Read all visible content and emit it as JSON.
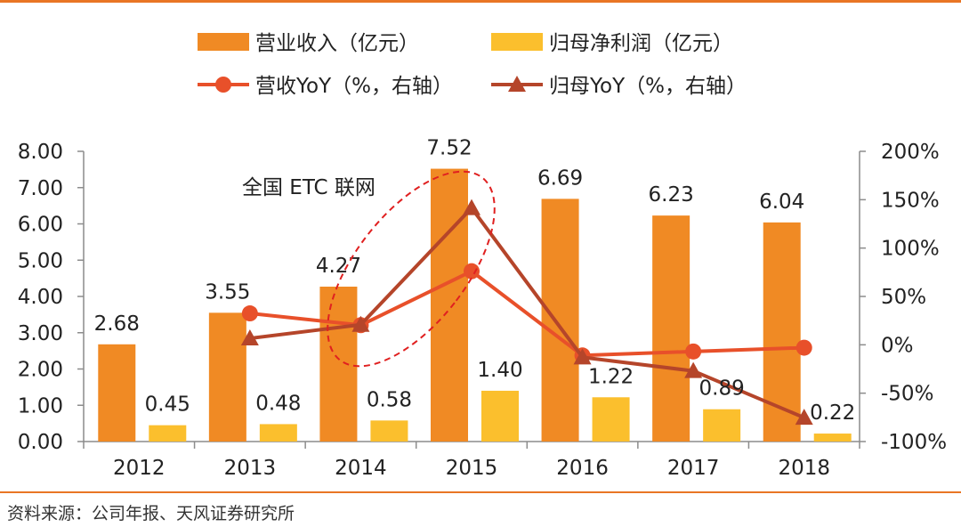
{
  "chart_data": {
    "type": "bar+line",
    "categories": [
      "2012",
      "2013",
      "2014",
      "2015",
      "2016",
      "2017",
      "2018"
    ],
    "bar_series": [
      {
        "name": "营业收入（亿元）",
        "values": [
          2.68,
          3.55,
          4.27,
          7.52,
          6.69,
          6.23,
          6.04
        ],
        "labels": [
          "2.68",
          "3.55",
          "4.27",
          "7.52",
          "6.69",
          "6.23",
          "6.04"
        ],
        "color": "#f08a24"
      },
      {
        "name": "归母净利润（亿元）",
        "values": [
          0.45,
          0.48,
          0.58,
          1.4,
          1.22,
          0.89,
          0.22
        ],
        "labels": [
          "0.45",
          "0.48",
          "0.58",
          "1.40",
          "1.22",
          "0.89",
          "0.22"
        ],
        "color": "#fbbf2d"
      }
    ],
    "line_series": [
      {
        "name": "营收YoY（%，右轴）",
        "marker": "circle",
        "color": "#e8502a",
        "values": [
          null,
          32.5,
          20.3,
          76.1,
          -11.0,
          -6.9,
          -3.0
        ]
      },
      {
        "name": "归母YoY（%，右轴）",
        "marker": "triangle",
        "color": "#b5452a",
        "values": [
          null,
          6.7,
          20.8,
          141.4,
          -12.9,
          -27.0,
          -75.3
        ]
      }
    ],
    "y_left": {
      "min": 0,
      "max": 8,
      "step": 1,
      "ticks": [
        "0.00",
        "1.00",
        "2.00",
        "3.00",
        "4.00",
        "5.00",
        "6.00",
        "7.00",
        "8.00"
      ]
    },
    "y_right": {
      "min": -100,
      "max": 200,
      "step": 50,
      "ticks": [
        "-100%",
        "-50%",
        "0%",
        "50%",
        "100%",
        "150%",
        "200%"
      ]
    },
    "annotation": {
      "text": "全国 ETC 联网",
      "highlight": "2014–2015"
    },
    "legend_position": "top"
  },
  "source": "资料来源：公司年报、天风证券研究所"
}
